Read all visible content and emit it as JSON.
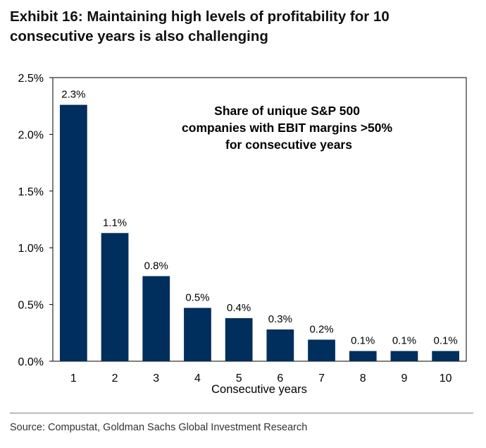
{
  "header": {
    "title": "Exhibit 16: Maintaining high levels of profitability for 10 consecutive years is also challenging"
  },
  "footer": {
    "source": "Source: Compustat, Goldman Sachs Global Investment Research"
  },
  "chart_data": {
    "type": "bar",
    "categories": [
      "1",
      "2",
      "3",
      "4",
      "5",
      "6",
      "7",
      "8",
      "9",
      "10"
    ],
    "values": [
      2.26,
      1.13,
      0.75,
      0.47,
      0.38,
      0.28,
      0.19,
      0.09,
      0.09,
      0.09
    ],
    "data_labels": [
      "2.3%",
      "1.1%",
      "0.8%",
      "0.5%",
      "0.4%",
      "0.3%",
      "0.2%",
      "0.1%",
      "0.1%",
      "0.1%"
    ],
    "title": "",
    "annotation": [
      "Share of unique S&P 500",
      "companies with EBIT margins >50%",
      "for consecutive years"
    ],
    "xlabel": "Consecutive years",
    "ylabel": "",
    "ylim": [
      0,
      2.5
    ],
    "yticks": [
      0,
      0.5,
      1.0,
      1.5,
      2.0,
      2.5
    ],
    "ytick_labels": [
      "0.0%",
      "0.5%",
      "1.0%",
      "1.5%",
      "2.0%",
      "2.5%"
    ],
    "bar_color": "#002e5d",
    "grid": false,
    "legend": "none"
  }
}
